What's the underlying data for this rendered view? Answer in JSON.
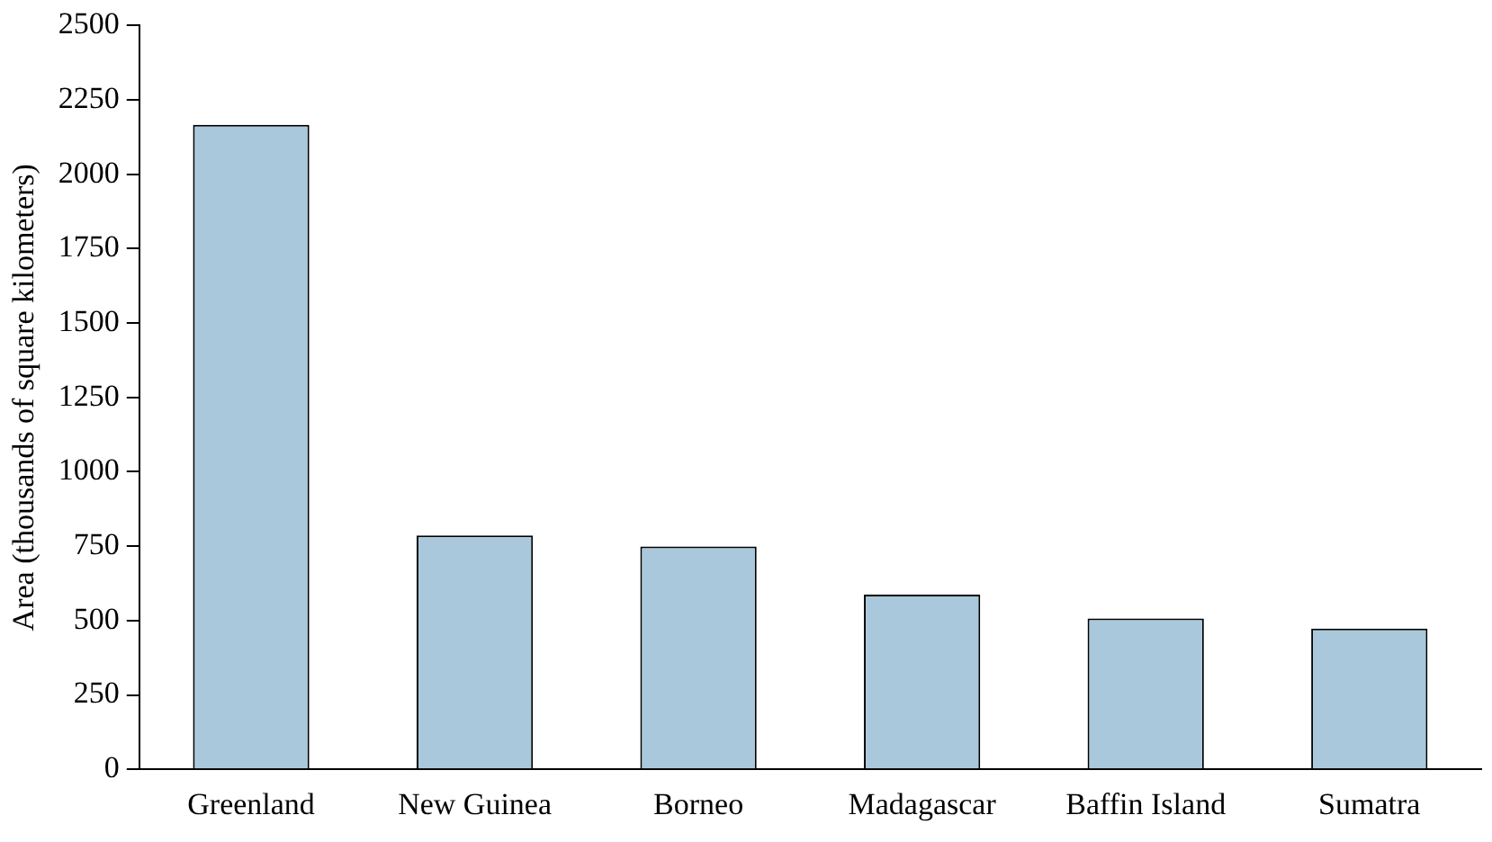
{
  "chart_data": {
    "type": "bar",
    "ylabel": "Area (thousands of square kilometers)",
    "categories": [
      "Greenland",
      "New Guinea",
      "Borneo",
      "Madagascar",
      "Baffin Island",
      "Sumatra"
    ],
    "values": [
      2166,
      786,
      749,
      587,
      507,
      473
    ],
    "color": "#a9c8dc",
    "ylim": [
      0,
      2500
    ],
    "yticks": [
      0,
      250,
      500,
      750,
      1000,
      1250,
      1500,
      1750,
      2000,
      2250,
      2500
    ],
    "grid": false,
    "legend": false
  }
}
